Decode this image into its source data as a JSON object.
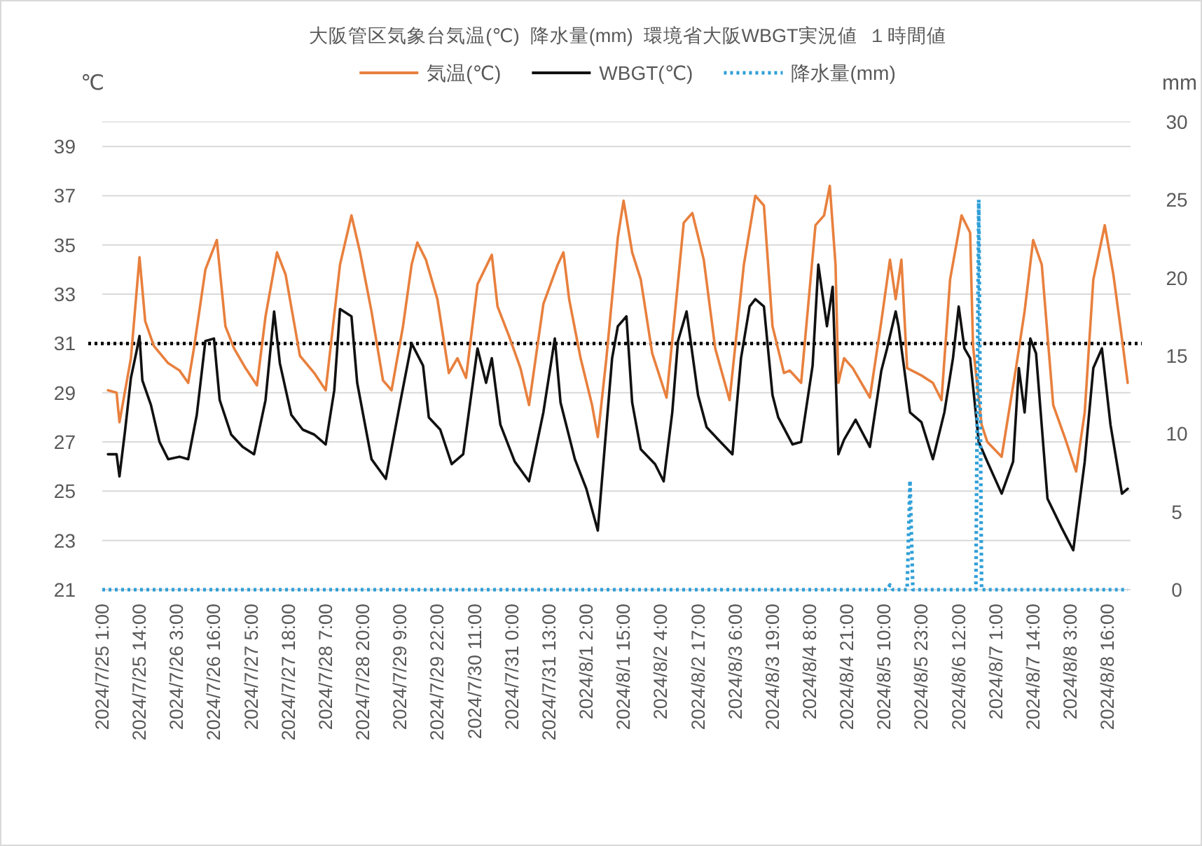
{
  "chart_data": {
    "type": "line",
    "title": "大阪管区気象台気温(℃)  降水量(mm)  環境省大阪WBGT実況値  １時間値",
    "ylabel": "℃",
    "y2label": "mm",
    "xlim": [
      "2024-07-25T01:00",
      "2024-08-09T00:00"
    ],
    "xticks": [
      {
        "value": "2024-07-25T01:00",
        "label": "2024/7/25 1:00"
      },
      {
        "value": "2024-07-25T14:00",
        "label": "2024/7/25 14:00"
      },
      {
        "value": "2024-07-26T03:00",
        "label": "2024/7/26 3:00"
      },
      {
        "value": "2024-07-26T16:00",
        "label": "2024/7/26 16:00"
      },
      {
        "value": "2024-07-27T05:00",
        "label": "2024/7/27 5:00"
      },
      {
        "value": "2024-07-27T18:00",
        "label": "2024/7/27 18:00"
      },
      {
        "value": "2024-07-28T07:00",
        "label": "2024/7/28 7:00"
      },
      {
        "value": "2024-07-28T20:00",
        "label": "2024/7/28 20:00"
      },
      {
        "value": "2024-07-29T09:00",
        "label": "2024/7/29 9:00"
      },
      {
        "value": "2024-07-29T22:00",
        "label": "2024/7/29 22:00"
      },
      {
        "value": "2024-07-30T11:00",
        "label": "2024/7/30 11:00"
      },
      {
        "value": "2024-07-31T00:00",
        "label": "2024/7/31 0:00"
      },
      {
        "value": "2024-07-31T13:00",
        "label": "2024/7/31 13:00"
      },
      {
        "value": "2024-08-01T02:00",
        "label": "2024/8/1 2:00"
      },
      {
        "value": "2024-08-01T15:00",
        "label": "2024/8/1 15:00"
      },
      {
        "value": "2024-08-02T04:00",
        "label": "2024/8/2 4:00"
      },
      {
        "value": "2024-08-02T17:00",
        "label": "2024/8/2 17:00"
      },
      {
        "value": "2024-08-03T06:00",
        "label": "2024/8/3 6:00"
      },
      {
        "value": "2024-08-03T19:00",
        "label": "2024/8/3 19:00"
      },
      {
        "value": "2024-08-04T08:00",
        "label": "2024/8/4 8:00"
      },
      {
        "value": "2024-08-04T21:00",
        "label": "2024/8/4 21:00"
      },
      {
        "value": "2024-08-05T10:00",
        "label": "2024/8/5 10:00"
      },
      {
        "value": "2024-08-05T23:00",
        "label": "2024/8/5 23:00"
      },
      {
        "value": "2024-08-06T12:00",
        "label": "2024/8/6 12:00"
      },
      {
        "value": "2024-08-07T01:00",
        "label": "2024/8/7 1:00"
      },
      {
        "value": "2024-08-07T14:00",
        "label": "2024/8/7 14:00"
      },
      {
        "value": "2024-08-08T03:00",
        "label": "2024/8/8 3:00"
      },
      {
        "value": "2024-08-08T16:00",
        "label": "2024/8/8 16:00"
      }
    ],
    "ylim": [
      21,
      40
    ],
    "yticks": [
      21,
      23,
      25,
      27,
      29,
      31,
      33,
      35,
      37,
      39
    ],
    "y2lim": [
      0,
      30
    ],
    "y2ticks": [
      0,
      5,
      10,
      15,
      20,
      25,
      30
    ],
    "grid": "y",
    "legend": "top",
    "ref_lines": [
      {
        "axis": "y",
        "value": 31,
        "color": "#000000",
        "line_style": "dotted"
      }
    ],
    "series": [
      {
        "name": "気温(℃)",
        "color": "#e8803e",
        "line_style": "solid",
        "x": [
          "2024-07-25T03:00",
          "2024-07-25T06:00",
          "2024-07-25T07:00",
          "2024-07-25T11:00",
          "2024-07-25T14:00",
          "2024-07-25T16:00",
          "2024-07-25T19:00",
          "2024-07-26T00:00",
          "2024-07-26T04:00",
          "2024-07-26T07:00",
          "2024-07-26T09:00",
          "2024-07-26T13:00",
          "2024-07-26T17:00",
          "2024-07-26T20:00",
          "2024-07-26T23:00",
          "2024-07-27T03:00",
          "2024-07-27T07:00",
          "2024-07-27T10:00",
          "2024-07-27T14:00",
          "2024-07-27T17:00",
          "2024-07-27T22:00",
          "2024-07-28T03:00",
          "2024-07-28T07:00",
          "2024-07-28T12:00",
          "2024-07-28T16:00",
          "2024-07-28T19:00",
          "2024-07-28T23:00",
          "2024-07-29T03:00",
          "2024-07-29T06:00",
          "2024-07-29T10:00",
          "2024-07-29T13:00",
          "2024-07-29T15:00",
          "2024-07-29T18:00",
          "2024-07-29T22:00",
          "2024-07-30T02:00",
          "2024-07-30T05:00",
          "2024-07-30T08:00",
          "2024-07-30T12:00",
          "2024-07-30T17:00",
          "2024-07-30T19:00",
          "2024-07-30T23:00",
          "2024-07-31T03:00",
          "2024-07-31T06:00",
          "2024-07-31T11:00",
          "2024-07-31T16:00",
          "2024-07-31T18:00",
          "2024-07-31T20:00",
          "2024-08-01T00:00",
          "2024-08-01T04:00",
          "2024-08-01T06:00",
          "2024-08-01T09:00",
          "2024-08-01T13:00",
          "2024-08-01T15:00",
          "2024-08-01T18:00",
          "2024-08-01T21:00",
          "2024-08-02T01:00",
          "2024-08-02T06:00",
          "2024-08-02T09:00",
          "2024-08-02T12:00",
          "2024-08-02T15:00",
          "2024-08-02T19:00",
          "2024-08-02T23:00",
          "2024-08-03T04:00",
          "2024-08-03T09:00",
          "2024-08-03T13:00",
          "2024-08-03T16:00",
          "2024-08-03T19:00",
          "2024-08-03T23:00",
          "2024-08-04T01:00",
          "2024-08-04T05:00",
          "2024-08-04T10:00",
          "2024-08-04T13:00",
          "2024-08-04T15:00",
          "2024-08-04T17:00",
          "2024-08-04T18:00",
          "2024-08-04T20:00",
          "2024-08-04T23:00",
          "2024-08-05T05:00",
          "2024-08-05T09:00",
          "2024-08-05T12:00",
          "2024-08-05T14:00",
          "2024-08-05T16:00",
          "2024-08-05T18:00",
          "2024-08-05T23:00",
          "2024-08-06T03:00",
          "2024-08-06T06:00",
          "2024-08-06T09:00",
          "2024-08-06T13:00",
          "2024-08-06T16:00",
          "2024-08-06T17:00",
          "2024-08-06T20:00",
          "2024-08-06T22:00",
          "2024-08-07T03:00",
          "2024-08-07T08:00",
          "2024-08-07T11:00",
          "2024-08-07T14:00",
          "2024-08-07T17:00",
          "2024-08-07T21:00",
          "2024-08-08T01:00",
          "2024-08-08T05:00",
          "2024-08-08T08:00",
          "2024-08-08T11:00",
          "2024-08-08T15:00",
          "2024-08-08T18:00",
          "2024-08-08T21:00",
          "2024-08-08T23:00"
        ],
        "values": [
          29.1,
          29.0,
          27.8,
          30.4,
          34.5,
          31.9,
          30.9,
          30.2,
          29.9,
          29.4,
          30.8,
          34.0,
          35.2,
          31.7,
          30.8,
          30.0,
          29.3,
          32.1,
          34.7,
          33.8,
          30.5,
          29.8,
          29.1,
          34.2,
          36.2,
          34.7,
          32.3,
          29.5,
          29.1,
          31.7,
          34.2,
          35.1,
          34.4,
          32.8,
          29.8,
          30.4,
          29.6,
          33.4,
          34.6,
          32.5,
          31.3,
          30.0,
          28.5,
          32.6,
          34.2,
          34.7,
          32.8,
          30.4,
          28.5,
          27.2,
          30.4,
          35.3,
          36.8,
          34.7,
          33.6,
          30.6,
          28.8,
          32.3,
          35.9,
          36.3,
          34.4,
          30.8,
          28.7,
          34.2,
          37.0,
          36.6,
          31.7,
          29.8,
          29.9,
          29.4,
          35.8,
          36.2,
          37.4,
          34.2,
          29.4,
          30.4,
          30.0,
          28.8,
          31.9,
          34.4,
          32.8,
          34.4,
          30.0,
          29.7,
          29.4,
          28.7,
          33.6,
          36.2,
          35.5,
          30.9,
          27.7,
          27.0,
          26.4,
          30.0,
          32.3,
          35.2,
          34.2,
          28.5,
          27.2,
          25.8,
          28.2,
          33.6,
          35.8,
          33.8,
          31.2,
          29.4
        ]
      },
      {
        "name": "WBGT(℃)",
        "color": "#111111",
        "line_style": "solid",
        "x": [
          "2024-07-25T03:00",
          "2024-07-25T06:00",
          "2024-07-25T07:00",
          "2024-07-25T09:00",
          "2024-07-25T11:00",
          "2024-07-25T13:00",
          "2024-07-25T14:00",
          "2024-07-25T15:00",
          "2024-07-25T18:00",
          "2024-07-25T21:00",
          "2024-07-26T00:00",
          "2024-07-26T04:00",
          "2024-07-26T07:00",
          "2024-07-26T10:00",
          "2024-07-26T13:00",
          "2024-07-26T16:00",
          "2024-07-26T18:00",
          "2024-07-26T22:00",
          "2024-07-27T02:00",
          "2024-07-27T06:00",
          "2024-07-27T10:00",
          "2024-07-27T13:00",
          "2024-07-27T15:00",
          "2024-07-27T19:00",
          "2024-07-27T23:00",
          "2024-07-28T03:00",
          "2024-07-28T07:00",
          "2024-07-28T10:00",
          "2024-07-28T12:00",
          "2024-07-28T16:00",
          "2024-07-28T18:00",
          "2024-07-28T23:00",
          "2024-07-29T04:00",
          "2024-07-29T09:00",
          "2024-07-29T13:00",
          "2024-07-29T17:00",
          "2024-07-29T19:00",
          "2024-07-29T23:00",
          "2024-07-30T03:00",
          "2024-07-30T07:00",
          "2024-07-30T12:00",
          "2024-07-30T15:00",
          "2024-07-30T17:00",
          "2024-07-30T20:00",
          "2024-07-31T01:00",
          "2024-07-31T06:00",
          "2024-07-31T11:00",
          "2024-07-31T15:00",
          "2024-07-31T17:00",
          "2024-07-31T22:00",
          "2024-08-01T02:00",
          "2024-08-01T06:00",
          "2024-08-01T11:00",
          "2024-08-01T13:00",
          "2024-08-01T16:00",
          "2024-08-01T18:00",
          "2024-08-01T21:00",
          "2024-08-02T02:00",
          "2024-08-02T05:00",
          "2024-08-02T08:00",
          "2024-08-02T10:00",
          "2024-08-02T13:00",
          "2024-08-02T17:00",
          "2024-08-02T20:00",
          "2024-08-03T00:00",
          "2024-08-03T05:00",
          "2024-08-03T08:00",
          "2024-08-03T11:00",
          "2024-08-03T13:00",
          "2024-08-03T16:00",
          "2024-08-03T19:00",
          "2024-08-03T21:00",
          "2024-08-04T02:00",
          "2024-08-04T05:00",
          "2024-08-04T09:00",
          "2024-08-04T11:00",
          "2024-08-04T14:00",
          "2024-08-04T16:00",
          "2024-08-04T18:00",
          "2024-08-04T20:00",
          "2024-08-05T00:00",
          "2024-08-05T05:00",
          "2024-08-05T09:00",
          "2024-08-05T11:00",
          "2024-08-05T14:00",
          "2024-08-05T15:00",
          "2024-08-05T19:00",
          "2024-08-05T23:00",
          "2024-08-06T03:00",
          "2024-08-06T07:00",
          "2024-08-06T10:00",
          "2024-08-06T12:00",
          "2024-08-06T14:00",
          "2024-08-06T16:00",
          "2024-08-06T19:00",
          "2024-08-06T22:00",
          "2024-08-07T03:00",
          "2024-08-07T07:00",
          "2024-08-07T09:00",
          "2024-08-07T11:00",
          "2024-08-07T13:00",
          "2024-08-07T15:00",
          "2024-08-07T19:00",
          "2024-08-08T00:00",
          "2024-08-08T04:00",
          "2024-08-08T08:00",
          "2024-08-08T11:00",
          "2024-08-08T14:00",
          "2024-08-08T17:00",
          "2024-08-08T21:00",
          "2024-08-08T23:00"
        ],
        "values": [
          26.5,
          26.5,
          25.6,
          27.5,
          29.6,
          30.7,
          31.3,
          29.5,
          28.5,
          27.0,
          26.3,
          26.4,
          26.3,
          28.1,
          31.1,
          31.2,
          28.7,
          27.3,
          26.8,
          26.5,
          28.7,
          32.3,
          30.2,
          28.1,
          27.5,
          27.3,
          26.9,
          29.1,
          32.4,
          32.1,
          29.4,
          26.3,
          25.5,
          28.6,
          31.0,
          30.1,
          28.0,
          27.5,
          26.1,
          26.5,
          30.8,
          29.4,
          30.4,
          27.7,
          26.2,
          25.4,
          28.2,
          31.2,
          28.6,
          26.3,
          25.1,
          23.4,
          30.4,
          31.7,
          32.1,
          28.6,
          26.7,
          26.1,
          25.4,
          28.2,
          31.1,
          32.3,
          28.9,
          27.6,
          27.1,
          26.5,
          30.4,
          32.5,
          32.8,
          32.5,
          28.9,
          28.0,
          26.9,
          27.0,
          30.1,
          34.2,
          31.7,
          33.3,
          26.5,
          27.1,
          27.9,
          26.8,
          29.9,
          30.8,
          32.3,
          31.7,
          28.2,
          27.8,
          26.3,
          28.2,
          30.4,
          32.5,
          30.8,
          30.4,
          27.0,
          26.2,
          24.9,
          26.2,
          30.0,
          28.2,
          31.2,
          30.6,
          24.7,
          23.5,
          22.6,
          26.2,
          30.0,
          30.8,
          27.7,
          24.9,
          25.1
        ]
      },
      {
        "name": "降水量(mm)",
        "color": "#2f9fd8",
        "line_style": "dotted",
        "axis": "y2",
        "x": [
          "2024-07-25T01:00",
          "2024-08-05T11:00",
          "2024-08-05T12:00",
          "2024-08-05T13:00",
          "2024-08-05T18:00",
          "2024-08-05T19:00",
          "2024-08-05T20:00",
          "2024-08-06T18:00",
          "2024-08-06T19:00",
          "2024-08-06T20:00",
          "2024-08-08T23:00"
        ],
        "values": [
          0,
          0,
          0.3,
          0,
          0,
          7.0,
          0,
          0,
          25.0,
          0,
          0
        ]
      }
    ]
  }
}
